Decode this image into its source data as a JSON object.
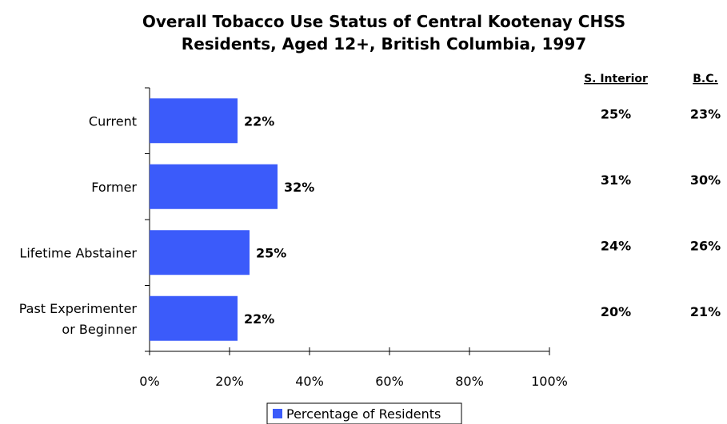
{
  "chart_data": {
    "type": "bar",
    "orientation": "horizontal",
    "title": "Overall Tobacco Use Status of Central Kootenay CHSS Residents, Aged 12+, British Columbia, 1997",
    "title_lines": [
      "Overall Tobacco Use Status of Central Kootenay CHSS",
      "Residents, Aged 12+, British Columbia, 1997"
    ],
    "categories": [
      [
        "Current"
      ],
      [
        "Former"
      ],
      [
        "Lifetime Abstainer"
      ],
      [
        "Past Experimenter",
        "or Beginner"
      ]
    ],
    "series": [
      {
        "name": "Percentage of Residents",
        "values": [
          22,
          32,
          25,
          22
        ],
        "labels": [
          "22%",
          "32%",
          "25%",
          "22%"
        ],
        "color": "#3b5bfa"
      }
    ],
    "xlim": [
      0,
      100
    ],
    "xticks": [
      0,
      20,
      40,
      60,
      80,
      100
    ],
    "xtick_labels": [
      "0%",
      "20%",
      "40%",
      "60%",
      "80%",
      "100%"
    ],
    "grid": false,
    "legend": "bottom",
    "comparison": {
      "columns": [
        {
          "name": "S. Interior",
          "values": [
            "25%",
            "31%",
            "24%",
            "20%"
          ]
        },
        {
          "name": "B.C.",
          "values": [
            "23%",
            "30%",
            "26%",
            "21%"
          ]
        }
      ]
    }
  }
}
